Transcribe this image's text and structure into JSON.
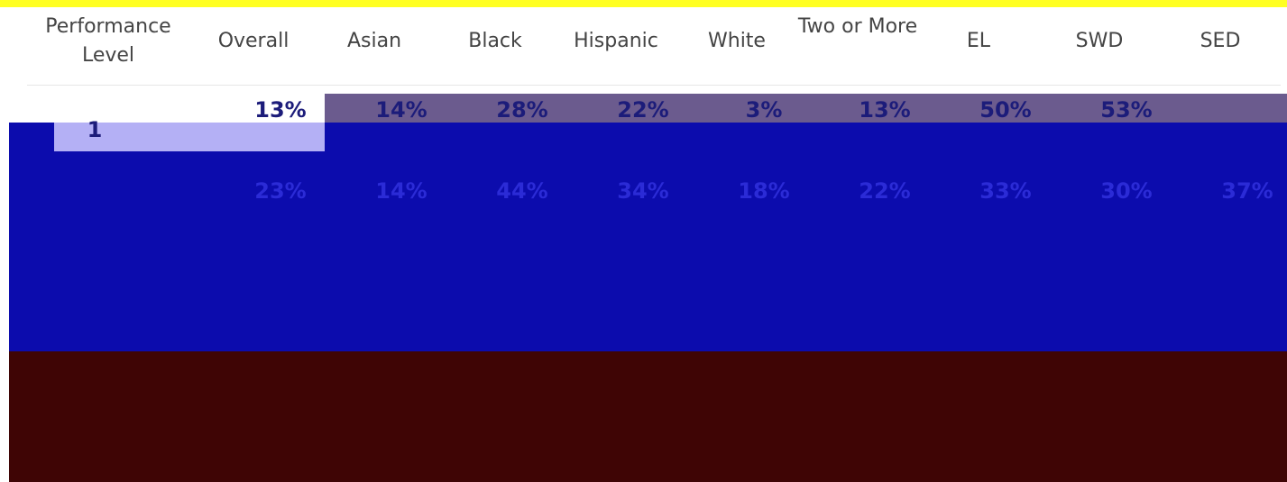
{
  "table": {
    "header": [
      "Performance Level",
      "Overall",
      "Asian",
      "Black",
      "Hispanic",
      "White",
      "Two or More",
      "EL",
      "SWD",
      "SED"
    ],
    "rows": [
      [
        "1",
        "13%",
        "14%",
        "28%",
        "22%",
        "3%",
        "13%",
        "50%",
        "53%",
        null
      ],
      [
        null,
        "23%",
        "14%",
        "44%",
        "34%",
        "18%",
        "22%",
        "33%",
        "30%",
        "37%"
      ]
    ]
  }
}
